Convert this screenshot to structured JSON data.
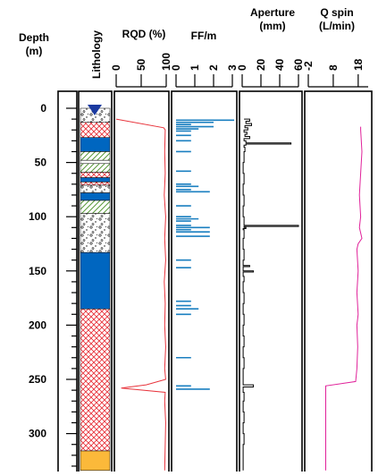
{
  "chart_data": {
    "type": "well-log",
    "title": "",
    "depth_axis": {
      "label_line1": "Depth",
      "label_line2": "(m)",
      "ticks": [
        0,
        50,
        100,
        150,
        200,
        250,
        300
      ],
      "range": [
        -3,
        334
      ]
    },
    "tracks": {
      "lithology": {
        "label": "Lithology",
        "colors": {
          "blue": "#0066c0",
          "red_hatch": "#e8343c",
          "green_hatch": "#5a9a3a",
          "gravel": "#000000",
          "orange": "#fbb93a",
          "water_marker": "#1b3aa0"
        },
        "water_level_marker_depth": 3,
        "intervals": [
          {
            "top": 0,
            "bottom": 13,
            "fill": "gravel"
          },
          {
            "top": 13,
            "bottom": 27,
            "fill": "red_hatch"
          },
          {
            "top": 27,
            "bottom": 40,
            "fill": "blue"
          },
          {
            "top": 40,
            "bottom": 48,
            "fill": "green_hatch"
          },
          {
            "top": 48,
            "bottom": 51,
            "fill": "white"
          },
          {
            "top": 51,
            "bottom": 59,
            "fill": "green_hatch"
          },
          {
            "top": 59,
            "bottom": 64,
            "fill": "red_hatch"
          },
          {
            "top": 64,
            "bottom": 68,
            "fill": "blue"
          },
          {
            "top": 68,
            "bottom": 71,
            "fill": "red_hatch"
          },
          {
            "top": 71,
            "bottom": 78,
            "fill": "gravel"
          },
          {
            "top": 78,
            "bottom": 85,
            "fill": "blue"
          },
          {
            "top": 85,
            "bottom": 97,
            "fill": "green_hatch"
          },
          {
            "top": 97,
            "bottom": 133,
            "fill": "gravel"
          },
          {
            "top": 133,
            "bottom": 185,
            "fill": "blue"
          },
          {
            "top": 185,
            "bottom": 316,
            "fill": "red_hatch"
          },
          {
            "top": 316,
            "bottom": 334,
            "fill": "orange"
          }
        ]
      },
      "rqd": {
        "label": "RQD (%)",
        "color": "#e8343c",
        "xlim": [
          0,
          100
        ],
        "ticks": [
          0,
          50,
          100
        ],
        "depth": [
          10,
          18,
          20,
          40,
          60,
          80,
          100,
          120,
          140,
          160,
          180,
          200,
          220,
          240,
          250,
          255,
          258,
          262,
          270,
          290,
          310,
          334
        ],
        "values": [
          0,
          95,
          98,
          97,
          98,
          96,
          99,
          97,
          99,
          96,
          98,
          97,
          99,
          97,
          99,
          60,
          10,
          98,
          97,
          99,
          98,
          97
        ]
      },
      "ff": {
        "label": "FF/m",
        "color": "#1a7fc0",
        "xlim": [
          0,
          3
        ],
        "ticks": [
          0,
          1,
          2,
          3
        ],
        "depth": [
          11,
          13,
          15,
          17,
          19,
          21,
          25,
          30,
          40,
          58,
          70,
          72,
          75,
          77,
          90,
          100,
          102,
          104,
          108,
          110,
          112,
          114,
          118,
          140,
          147,
          178,
          182,
          185,
          190,
          230,
          256,
          259
        ],
        "values": [
          3.1,
          2.0,
          0.8,
          2.0,
          1.2,
          0.8,
          0.8,
          0.8,
          0.8,
          0.8,
          0.8,
          1.2,
          0.8,
          1.8,
          0.8,
          0.8,
          1.2,
          0.8,
          0.8,
          1.8,
          0.8,
          1.8,
          1.8,
          0.8,
          0.8,
          0.8,
          0.8,
          1.2,
          0.8,
          0.8,
          0.8,
          1.8
        ]
      },
      "aperture": {
        "label_line1": "Aperture",
        "label_line2": "(mm)",
        "color": "#000000",
        "xlim": [
          0,
          60
        ],
        "ticks": [
          0,
          20,
          40,
          60
        ],
        "depth": [
          10,
          12,
          14,
          16,
          18,
          20,
          22,
          24,
          26,
          28,
          30,
          32,
          33,
          34,
          36,
          40,
          50,
          60,
          70,
          80,
          90,
          100,
          108,
          109,
          110,
          111,
          112,
          120,
          130,
          140,
          145,
          146,
          150,
          151,
          155,
          160,
          170,
          180,
          190,
          200,
          210,
          220,
          230,
          240,
          250,
          255,
          256,
          257,
          258,
          262,
          270,
          280,
          290,
          300,
          310,
          334
        ],
        "values": [
          2,
          8,
          4,
          10,
          3,
          6,
          2,
          5,
          3,
          8,
          2,
          4,
          52,
          4,
          2,
          3,
          2,
          1,
          2,
          1,
          2,
          1,
          2,
          60,
          2,
          4,
          1,
          2,
          1,
          2,
          1,
          8,
          1,
          12,
          1,
          2,
          1,
          2,
          1,
          2,
          1,
          2,
          1,
          2,
          1,
          1,
          12,
          12,
          1,
          1,
          2,
          1,
          2,
          1,
          2,
          1
        ]
      },
      "qspin": {
        "label_line1": "Q spin",
        "label_line2": "(L/min)",
        "color": "#e0229a",
        "xlim": [
          -2,
          22
        ],
        "ticks": [
          -2,
          8,
          18
        ],
        "depth": [
          17,
          20,
          40,
          60,
          80,
          100,
          110,
          120,
          125,
          130,
          150,
          170,
          190,
          200,
          220,
          240,
          252,
          256,
          260,
          280,
          300,
          320,
          334
        ],
        "values": [
          19,
          19,
          19.5,
          19,
          18.5,
          19,
          18.5,
          19.5,
          18,
          17.5,
          18,
          17.5,
          18,
          17.5,
          17.8,
          17.5,
          17,
          5,
          5,
          5,
          5,
          5,
          5
        ]
      }
    }
  }
}
